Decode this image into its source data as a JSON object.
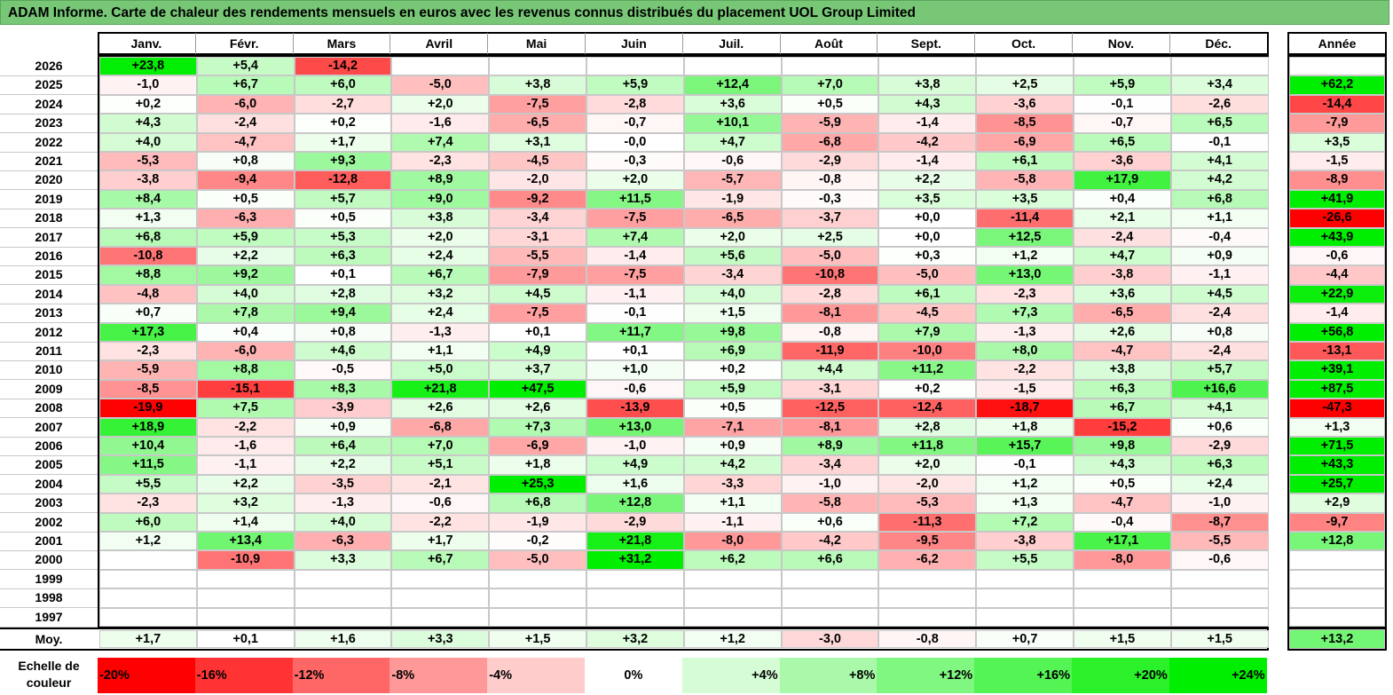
{
  "title": "ADAM Informe. Carte de chaleur des rendements mensuels en euros avec les revenus connus distribués du placement UOL Group Limited",
  "months": [
    "Janv.",
    "Févr.",
    "Mars",
    "Avril",
    "Mai",
    "Juin",
    "Juil.",
    "Août",
    "Sept.",
    "Oct.",
    "Nov.",
    "Déc."
  ],
  "year_header": "Année",
  "avg_label": "Moy.",
  "legend_label_line1": "Echelle de",
  "legend_label_line2": "couleur",
  "colors": {
    "neg_max": "#ff0000",
    "neutral": "#ffffff",
    "pos_max": "#00ee00",
    "title_bg": "#77c777"
  },
  "chart_data": {
    "type": "heatmap",
    "title": "ADAM Informe. Carte de chaleur des rendements mensuels en euros avec les revenus connus distribués du placement UOL Group Limited",
    "x_categories": [
      "Janv.",
      "Févr.",
      "Mars",
      "Avril",
      "Mai",
      "Juin",
      "Juil.",
      "Août",
      "Sept.",
      "Oct.",
      "Nov.",
      "Déc."
    ],
    "rows": [
      {
        "year": "2026",
        "m": [
          "+23,8",
          "+5,4",
          "-14,2",
          "",
          "",
          "",
          "",
          "",
          "",
          "",
          "",
          ""
        ],
        "y": ""
      },
      {
        "year": "2025",
        "m": [
          "-1,0",
          "+6,7",
          "+6,0",
          "-5,0",
          "+3,8",
          "+5,9",
          "+12,4",
          "+7,0",
          "+3,8",
          "+2,5",
          "+5,9",
          "+3,4"
        ],
        "y": "+62,2"
      },
      {
        "year": "2024",
        "m": [
          "+0,2",
          "-6,0",
          "-2,7",
          "+2,0",
          "-7,5",
          "-2,8",
          "+3,6",
          "+0,5",
          "+4,3",
          "-3,6",
          "-0,1",
          "-2,6"
        ],
        "y": "-14,4"
      },
      {
        "year": "2023",
        "m": [
          "+4,3",
          "-2,4",
          "+0,2",
          "-1,6",
          "-6,5",
          "-0,7",
          "+10,1",
          "-5,9",
          "-1,4",
          "-8,5",
          "-0,7",
          "+6,5"
        ],
        "y": "-7,9"
      },
      {
        "year": "2022",
        "m": [
          "+4,0",
          "-4,7",
          "+1,7",
          "+7,4",
          "+3,1",
          "-0,0",
          "+4,7",
          "-6,8",
          "-4,2",
          "-6,9",
          "+6,5",
          "-0,1"
        ],
        "y": "+3,5"
      },
      {
        "year": "2021",
        "m": [
          "-5,3",
          "+0,8",
          "+9,3",
          "-2,3",
          "-4,5",
          "-0,3",
          "-0,6",
          "-2,9",
          "-1,4",
          "+6,1",
          "-3,6",
          "+4,1"
        ],
        "y": "-1,5"
      },
      {
        "year": "2020",
        "m": [
          "-3,8",
          "-9,4",
          "-12,8",
          "+8,9",
          "-2,0",
          "+2,0",
          "-5,7",
          "-0,8",
          "+2,2",
          "-5,8",
          "+17,9",
          "+4,2"
        ],
        "y": "-8,9"
      },
      {
        "year": "2019",
        "m": [
          "+8,4",
          "+0,5",
          "+5,7",
          "+9,0",
          "-9,2",
          "+11,5",
          "-1,9",
          "-0,3",
          "+3,5",
          "+3,5",
          "+0,4",
          "+6,8"
        ],
        "y": "+41,9"
      },
      {
        "year": "2018",
        "m": [
          "+1,3",
          "-6,3",
          "+0,5",
          "+3,8",
          "-3,4",
          "-7,5",
          "-6,5",
          "-3,7",
          "+0,0",
          "-11,4",
          "+2,1",
          "+1,1"
        ],
        "y": "-26,6"
      },
      {
        "year": "2017",
        "m": [
          "+6,8",
          "+5,9",
          "+5,3",
          "+2,0",
          "-3,1",
          "+7,4",
          "+2,0",
          "+2,5",
          "+0,0",
          "+12,5",
          "-2,4",
          "-0,4"
        ],
        "y": "+43,9"
      },
      {
        "year": "2016",
        "m": [
          "-10,8",
          "+2,2",
          "+6,3",
          "+2,4",
          "-5,5",
          "-1,4",
          "+5,6",
          "-5,0",
          "+0,3",
          "+1,2",
          "+4,7",
          "+0,9"
        ],
        "y": "-0,6"
      },
      {
        "year": "2015",
        "m": [
          "+8,8",
          "+9,2",
          "+0,1",
          "+6,7",
          "-7,9",
          "-7,5",
          "-3,4",
          "-10,8",
          "-5,0",
          "+13,0",
          "-3,8",
          "-1,1"
        ],
        "y": "-4,4"
      },
      {
        "year": "2014",
        "m": [
          "-4,8",
          "+4,0",
          "+2,8",
          "+3,2",
          "+4,5",
          "-1,1",
          "+4,0",
          "-2,8",
          "+6,1",
          "-2,3",
          "+3,6",
          "+4,5"
        ],
        "y": "+22,9"
      },
      {
        "year": "2013",
        "m": [
          "+0,7",
          "+7,8",
          "+9,4",
          "+2,4",
          "-7,5",
          "-0,1",
          "+1,5",
          "-8,1",
          "-4,5",
          "+7,3",
          "-6,5",
          "-2,4"
        ],
        "y": "-1,4"
      },
      {
        "year": "2012",
        "m": [
          "+17,3",
          "+0,4",
          "+0,8",
          "-1,3",
          "+0,1",
          "+11,7",
          "+9,8",
          "-0,8",
          "+7,9",
          "-1,3",
          "+2,6",
          "+0,8"
        ],
        "y": "+56,8"
      },
      {
        "year": "2011",
        "m": [
          "-2,3",
          "-6,0",
          "+4,6",
          "+1,1",
          "+4,9",
          "+0,1",
          "+6,9",
          "-11,9",
          "-10,0",
          "+8,0",
          "-4,7",
          "-2,4"
        ],
        "y": "-13,1"
      },
      {
        "year": "2010",
        "m": [
          "-5,9",
          "+8,8",
          "-0,5",
          "+5,0",
          "+3,7",
          "+1,0",
          "+0,2",
          "+4,4",
          "+11,2",
          "-2,2",
          "+3,8",
          "+5,7"
        ],
        "y": "+39,1"
      },
      {
        "year": "2009",
        "m": [
          "-8,5",
          "-15,1",
          "+8,3",
          "+21,8",
          "+47,5",
          "-0,6",
          "+5,9",
          "-3,1",
          "+0,2",
          "-1,5",
          "+6,3",
          "+16,6"
        ],
        "y": "+87,5"
      },
      {
        "year": "2008",
        "m": [
          "-19,9",
          "+7,5",
          "-3,9",
          "+2,6",
          "+2,6",
          "-13,9",
          "+0,5",
          "-12,5",
          "-12,4",
          "-18,7",
          "+6,7",
          "+4,1"
        ],
        "y": "-47,3"
      },
      {
        "year": "2007",
        "m": [
          "+18,9",
          "-2,2",
          "+0,9",
          "-6,8",
          "+7,3",
          "+13,0",
          "-7,1",
          "-8,1",
          "+2,8",
          "+1,8",
          "-15,2",
          "+0,6"
        ],
        "y": "+1,3"
      },
      {
        "year": "2006",
        "m": [
          "+10,4",
          "-1,6",
          "+6,4",
          "+7,0",
          "-6,9",
          "-1,0",
          "+0,9",
          "+8,9",
          "+11,8",
          "+15,7",
          "+9,8",
          "-2,9"
        ],
        "y": "+71,5"
      },
      {
        "year": "2005",
        "m": [
          "+11,5",
          "-1,1",
          "+2,2",
          "+5,1",
          "+1,8",
          "+4,9",
          "+4,2",
          "-3,4",
          "+2,0",
          "-0,1",
          "+4,3",
          "+6,3"
        ],
        "y": "+43,3"
      },
      {
        "year": "2004",
        "m": [
          "+5,5",
          "+2,2",
          "-3,5",
          "-2,1",
          "+25,3",
          "+1,6",
          "-3,3",
          "-1,0",
          "-2,0",
          "+1,2",
          "+0,5",
          "+2,4"
        ],
        "y": "+25,7"
      },
      {
        "year": "2003",
        "m": [
          "-2,3",
          "+3,2",
          "-1,3",
          "-0,6",
          "+6,8",
          "+12,8",
          "+1,1",
          "-5,8",
          "-5,3",
          "+1,3",
          "-4,7",
          "-1,0"
        ],
        "y": "+2,9"
      },
      {
        "year": "2002",
        "m": [
          "+6,0",
          "+1,4",
          "+4,0",
          "-2,2",
          "-1,9",
          "-2,9",
          "-1,1",
          "+0,6",
          "-11,3",
          "+7,2",
          "-0,4",
          "-8,7"
        ],
        "y": "-9,7"
      },
      {
        "year": "2001",
        "m": [
          "+1,2",
          "+13,4",
          "-6,3",
          "+1,7",
          "-0,2",
          "+21,8",
          "-8,0",
          "-4,2",
          "-9,5",
          "-3,8",
          "+17,1",
          "-5,5"
        ],
        "y": "+12,8"
      },
      {
        "year": "2000",
        "m": [
          "",
          "-10,9",
          "+3,3",
          "+6,7",
          "-5,0",
          "+31,2",
          "+6,2",
          "+6,6",
          "-6,2",
          "+5,5",
          "-8,0",
          "-0,6"
        ],
        "y": ""
      },
      {
        "year": "1999",
        "m": [
          "",
          "",
          "",
          "",
          "",
          "",
          "",
          "",
          "",
          "",
          "",
          ""
        ],
        "y": ""
      },
      {
        "year": "1998",
        "m": [
          "",
          "",
          "",
          "",
          "",
          "",
          "",
          "",
          "",
          "",
          "",
          ""
        ],
        "y": ""
      },
      {
        "year": "1997",
        "m": [
          "",
          "",
          "",
          "",
          "",
          "",
          "",
          "",
          "",
          "",
          "",
          ""
        ],
        "y": ""
      }
    ],
    "averages": {
      "m": [
        "+1,7",
        "+0,1",
        "+1,6",
        "+3,3",
        "+1,5",
        "+3,2",
        "+1,2",
        "-3,0",
        "-0,8",
        "+0,7",
        "+1,5",
        "+1,5"
      ],
      "y": "+13,2"
    },
    "color_scale": [
      {
        "label": "-20%",
        "v": -20
      },
      {
        "label": "-16%",
        "v": -16
      },
      {
        "label": "-12%",
        "v": -12
      },
      {
        "label": "-8%",
        "v": -8
      },
      {
        "label": "-4%",
        "v": -4
      },
      {
        "label": "0%",
        "v": 0
      },
      {
        "label": "+4%",
        "v": 4
      },
      {
        "label": "+8%",
        "v": 8
      },
      {
        "label": "+12%",
        "v": 12
      },
      {
        "label": "+16%",
        "v": 16
      },
      {
        "label": "+20%",
        "v": 20
      },
      {
        "label": "+24%",
        "v": 24
      }
    ],
    "scale_range": [
      -20,
      24
    ]
  }
}
